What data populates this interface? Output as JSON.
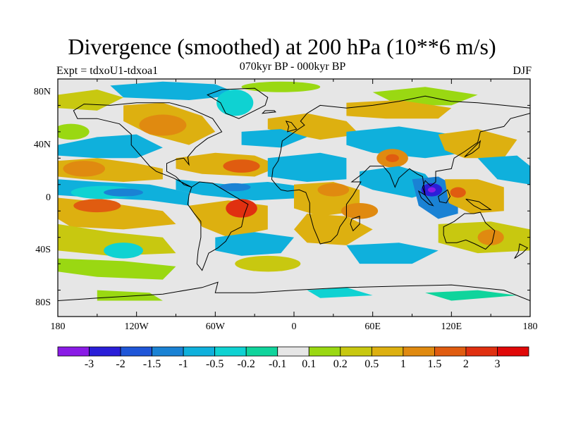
{
  "title": "Divergence (smoothed) at 200 hPa (10**6 m/s)",
  "subtitle": "070kyr BP - 000kyr BP",
  "left_label": "Expt = tdxoU1-tdxoa1",
  "right_label": "DJF",
  "lat_labels": [
    "80N",
    "40N",
    "0",
    "40S",
    "80S"
  ],
  "lon_labels": [
    "180",
    "120W",
    "60W",
    "0",
    "60E",
    "120E",
    "180"
  ],
  "colorbar": {
    "labels": [
      "-3",
      "-2",
      "-1.5",
      "-1",
      "-0.5",
      "-0.2",
      "-0.1",
      "0.1",
      "0.2",
      "0.5",
      "1",
      "1.5",
      "2",
      "3"
    ],
    "colors": [
      "#8a1be6",
      "#2a1ed8",
      "#1f56d8",
      "#1a82d4",
      "#0fb0dc",
      "#0fd2d2",
      "#10d49c",
      "#e6e6e6",
      "#9ad812",
      "#c8c810",
      "#ddb010",
      "#e08a10",
      "#e05c10",
      "#e03010",
      "#e00808"
    ]
  },
  "fill_colors": {
    "neutral": "#e6e6e6",
    "blue_mid": "#1a82d4",
    "cyan": "#0fb0dc",
    "teal": "#0fd2d2",
    "green": "#10d49c",
    "deep_blue": "#2a1ed8",
    "violet": "#8a1be6",
    "lime": "#9ad812",
    "olive": "#c8c810",
    "amber": "#ddb010",
    "orange": "#e08a10",
    "red_orange": "#e05c10",
    "red": "#e03010"
  }
}
